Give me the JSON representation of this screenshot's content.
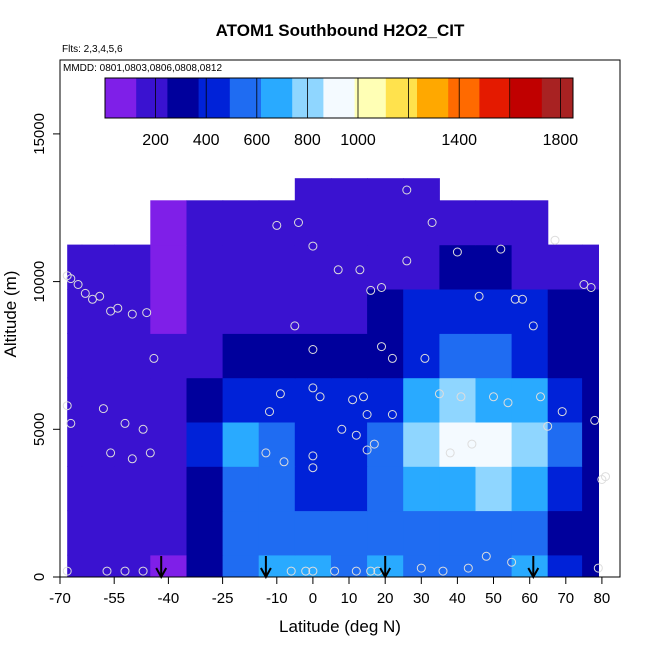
{
  "chart_data": {
    "type": "heatmap",
    "title": "ATOM1 Southbound H2O2_CIT",
    "annotations": [
      "Flts: 2,3,4,5,6",
      "MMDD: 0801,0803,0806,0808,0812"
    ],
    "xlabel": "Latitude (deg N)",
    "ylabel": "Altitude (m)",
    "xlim": [
      -70,
      85
    ],
    "ylim": [
      0,
      17500
    ],
    "x_ticks": [
      -70,
      -55,
      -40,
      -25,
      -10,
      0,
      10,
      20,
      30,
      40,
      50,
      60,
      70,
      80
    ],
    "x_tick_labels": [
      "-70",
      "-55",
      "-40",
      "-25",
      "-10",
      "0",
      "10",
      "20",
      "30",
      "40",
      "50",
      "60",
      "70",
      "80"
    ],
    "y_ticks": [
      0,
      5000,
      10000,
      15000
    ],
    "y_tick_labels": [
      "0",
      "5000",
      "10000",
      "15000"
    ],
    "colorbar": {
      "min": 0,
      "max": 1850,
      "ticks": [
        200,
        400,
        600,
        800,
        1000,
        1400,
        1800
      ],
      "tick_labels": [
        "200",
        "400",
        "600",
        "800",
        "1000",
        "1400",
        "1800"
      ],
      "bin_edges": [
        0,
        200,
        400,
        600,
        800,
        1000,
        1200,
        1400,
        1600,
        1800,
        1850
      ],
      "colors": [
        "#7f1fe8",
        "#3a12d0",
        "#00009c",
        "#0022d8",
        "#1f6cf2",
        "#29aaff",
        "#8fd6ff",
        "#f4faff",
        "#ffffb5",
        "#ffe24d",
        "#ffa800",
        "#ff6a00",
        "#e41a00",
        "#c00000",
        "#a82222"
      ]
    },
    "grid": false,
    "legend": "colorbar-top",
    "arrows_x": [
      -42,
      -13,
      20,
      61
    ],
    "altitude_bins": [
      0,
      1500,
      3000,
      4500,
      6000,
      7500,
      9000,
      10500,
      12000,
      13500
    ],
    "latitude_bins": [
      -68,
      -60,
      -50,
      -40,
      -30,
      -20,
      -10,
      0,
      10,
      20,
      30,
      40,
      50,
      60,
      70,
      79
    ],
    "values": [
      [
        190,
        190,
        180,
        100,
        330,
        560,
        640,
        640,
        600,
        620,
        590,
        560,
        610,
        620,
        380,
        330
      ],
      [
        220,
        210,
        200,
        130,
        300,
        500,
        580,
        560,
        520,
        520,
        560,
        520,
        560,
        560,
        360,
        300
      ],
      [
        230,
        220,
        210,
        150,
        360,
        580,
        520,
        450,
        440,
        500,
        620,
        720,
        760,
        700,
        450,
        320
      ],
      [
        240,
        230,
        220,
        160,
        380,
        620,
        540,
        460,
        460,
        560,
        760,
        960,
        940,
        800,
        500,
        320
      ],
      [
        240,
        230,
        220,
        160,
        320,
        480,
        460,
        420,
        380,
        480,
        640,
        760,
        720,
        620,
        400,
        300
      ],
      [
        230,
        220,
        210,
        140,
        220,
        330,
        340,
        300,
        280,
        320,
        440,
        500,
        520,
        440,
        320,
        260
      ],
      [
        210,
        200,
        190,
        120,
        180,
        230,
        230,
        200,
        180,
        250,
        380,
        460,
        480,
        420,
        300,
        250
      ],
      [
        170,
        170,
        160,
        110,
        150,
        190,
        170,
        140,
        140,
        190,
        240,
        260,
        250,
        230,
        210,
        180
      ],
      [
        null,
        null,
        null,
        120,
        140,
        160,
        150,
        130,
        130,
        160,
        190,
        200,
        190,
        180,
        null,
        null
      ],
      [
        null,
        null,
        null,
        null,
        null,
        null,
        null,
        150,
        150,
        170,
        180,
        null,
        null,
        null,
        null,
        null
      ]
    ],
    "sample_points": [
      [
        -68,
        10200
      ],
      [
        -67,
        10100
      ],
      [
        -65,
        9900
      ],
      [
        -63,
        9600
      ],
      [
        -61,
        9400
      ],
      [
        -59,
        9500
      ],
      [
        -56,
        9000
      ],
      [
        -54,
        9100
      ],
      [
        -50,
        8900
      ],
      [
        -46,
        8950
      ],
      [
        -44,
        7400
      ],
      [
        -68,
        5800
      ],
      [
        -67,
        5200
      ],
      [
        -58,
        5700
      ],
      [
        -56,
        4200
      ],
      [
        -52,
        5200
      ],
      [
        -50,
        4000
      ],
      [
        -47,
        5000
      ],
      [
        -45,
        4200
      ],
      [
        -68,
        200
      ],
      [
        -57,
        200
      ],
      [
        -52,
        200
      ],
      [
        -47,
        200
      ],
      [
        -13,
        4200
      ],
      [
        -12,
        5600
      ],
      [
        -8,
        3900
      ],
      [
        -6,
        200
      ],
      [
        -2,
        200
      ],
      [
        0,
        200
      ],
      [
        -10,
        11900
      ],
      [
        -4,
        12000
      ],
      [
        0,
        11200
      ],
      [
        7,
        10400
      ],
      [
        13,
        10400
      ],
      [
        16,
        9700
      ],
      [
        19,
        9800
      ],
      [
        26,
        10700
      ],
      [
        26,
        13100
      ],
      [
        33,
        12000
      ],
      [
        40,
        11000
      ],
      [
        52,
        11100
      ],
      [
        67,
        11400
      ],
      [
        -5,
        8500
      ],
      [
        0,
        7700
      ],
      [
        19,
        7800
      ],
      [
        22,
        7400
      ],
      [
        31,
        7400
      ],
      [
        -9,
        6200
      ],
      [
        0,
        6400
      ],
      [
        2,
        6100
      ],
      [
        11,
        6000
      ],
      [
        14,
        6100
      ],
      [
        15,
        5500
      ],
      [
        8,
        5000
      ],
      [
        12,
        4800
      ],
      [
        17,
        4500
      ],
      [
        15,
        4300
      ],
      [
        0,
        4100
      ],
      [
        0,
        3700
      ],
      [
        6,
        200
      ],
      [
        12,
        200
      ],
      [
        16,
        200
      ],
      [
        18,
        200
      ],
      [
        30,
        300
      ],
      [
        36,
        200
      ],
      [
        43,
        300
      ],
      [
        48,
        700
      ],
      [
        55,
        500
      ],
      [
        79,
        300
      ],
      [
        22,
        5500
      ],
      [
        35,
        6200
      ],
      [
        41,
        6100
      ],
      [
        46,
        9500
      ],
      [
        50,
        6100
      ],
      [
        54,
        5900
      ],
      [
        56,
        9400
      ],
      [
        58,
        9400
      ],
      [
        61,
        8500
      ],
      [
        63,
        6100
      ],
      [
        65,
        5100
      ],
      [
        69,
        5600
      ],
      [
        75,
        9900
      ],
      [
        77,
        9800
      ],
      [
        78,
        5300
      ],
      [
        80,
        3300
      ],
      [
        81,
        3400
      ],
      [
        38,
        4200
      ],
      [
        44,
        4500
      ]
    ]
  }
}
